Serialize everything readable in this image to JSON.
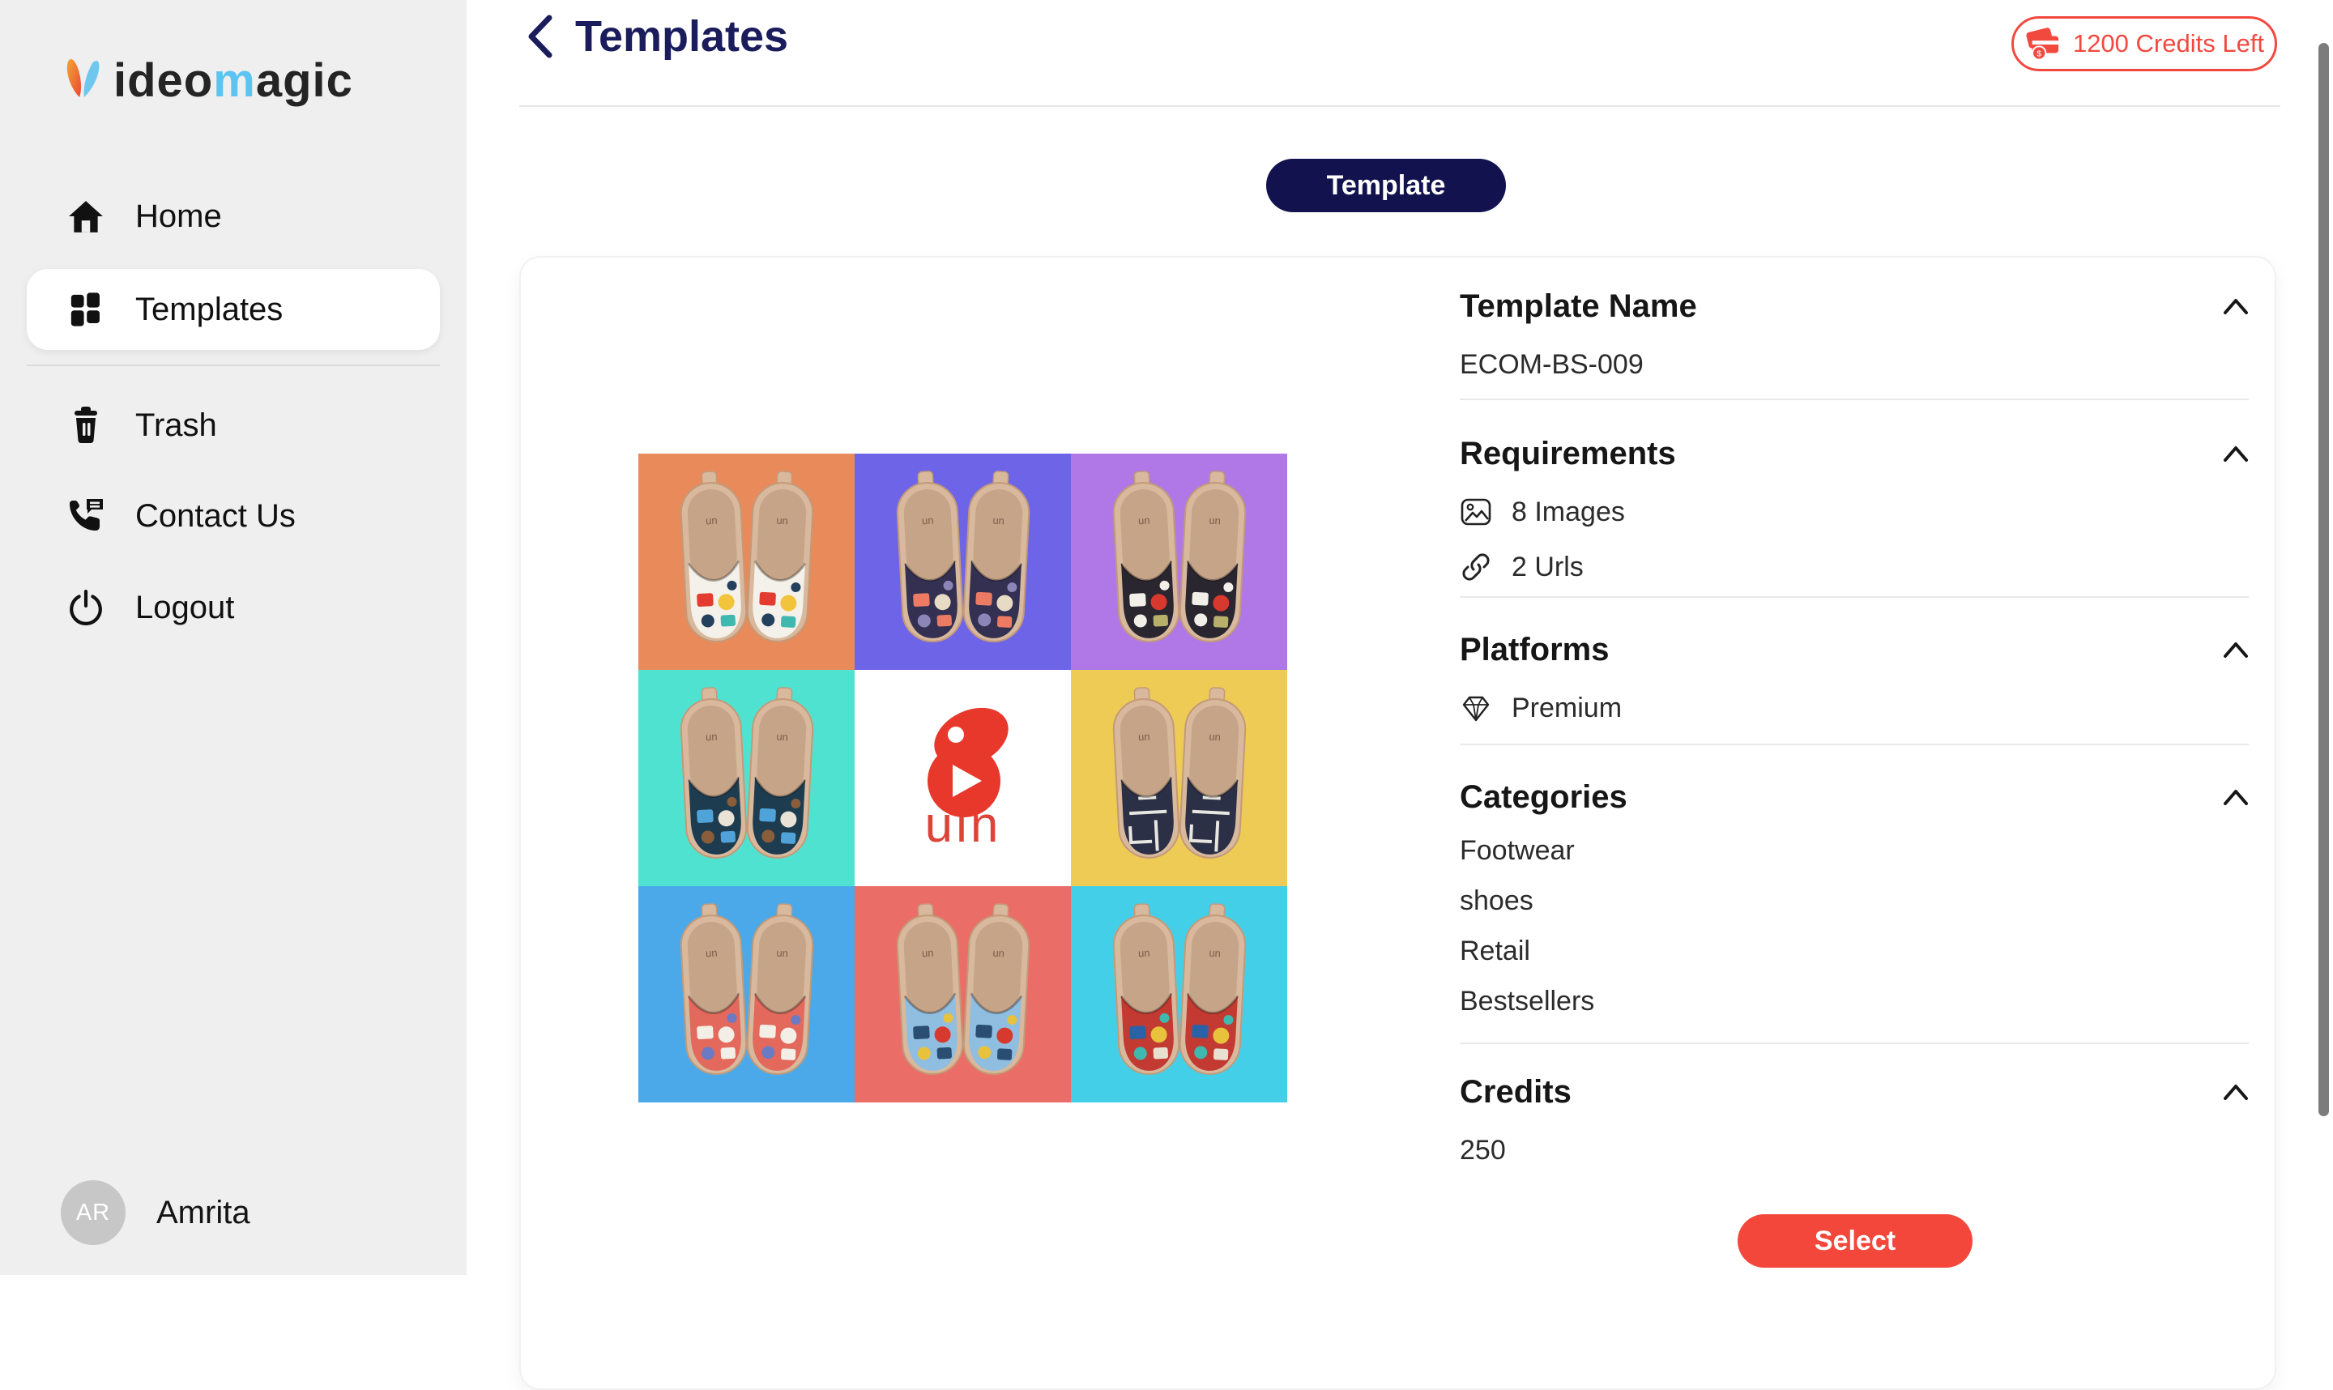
{
  "colors": {
    "accent_red": "#F2493F",
    "select_red": "#F4473C",
    "play_red": "#E8382C",
    "uin_red": "#DD4438",
    "navy_button": "#12124E",
    "title_navy": "#1A1C5C",
    "sidebar_bg": "#EFEFEF",
    "sole_tan": "#D8B99D",
    "sole_edge": "#C39A78",
    "insole_tan": "#C6A488"
  },
  "logo": {
    "icon": "v-mark",
    "part1": "ideo",
    "part2": "m",
    "part3": "agic"
  },
  "sidebar": {
    "items": [
      {
        "label": "Home",
        "icon": "home-icon",
        "selected": false
      },
      {
        "label": "Templates",
        "icon": "templates-grid-icon",
        "selected": true
      },
      {
        "label": "Trash",
        "icon": "trash-icon",
        "selected": false
      },
      {
        "label": "Contact Us",
        "icon": "contact-phone-icon",
        "selected": false
      },
      {
        "label": "Logout",
        "icon": "logout-power-icon",
        "selected": false
      }
    ],
    "user": {
      "initials": "AR",
      "name": "Amrita"
    }
  },
  "header": {
    "back": "back-chevron",
    "title": "Templates",
    "credits_badge": "1200 Credits Left"
  },
  "tab": {
    "label": "Template"
  },
  "details": {
    "template_name": {
      "heading": "Template Name",
      "value": "ECOM-BS-009"
    },
    "requirements": {
      "heading": "Requirements",
      "items": [
        {
          "icon": "images-icon",
          "label": "8 Images"
        },
        {
          "icon": "link-icon",
          "label": "2 Urls"
        }
      ]
    },
    "platforms": {
      "heading": "Platforms",
      "items": [
        {
          "icon": "gem-icon",
          "label": "Premium"
        }
      ]
    },
    "categories": {
      "heading": "Categories",
      "items": [
        "Footwear",
        "shoes",
        "Retail",
        "Bestsellers"
      ]
    },
    "credits": {
      "heading": "Credits",
      "value": "250"
    },
    "select_label": "Select"
  },
  "preview": {
    "video_text": "uin",
    "cells": [
      {
        "name": "shoes-colorblock",
        "type": "shoes",
        "bg": "#E98A5B",
        "upper": "#F4F1EA",
        "motifs": [
          "#E33B2F",
          "#F2C43C",
          "#23405C",
          "#3FB9B0"
        ]
      },
      {
        "name": "shoes-dragon-art",
        "type": "shoes",
        "bg": "#6E64E8",
        "upper": "#343052",
        "motifs": [
          "#ED7A63",
          "#E8DBC6",
          "#8C86B8",
          "#ED7A63"
        ]
      },
      {
        "name": "shoes-black-floral",
        "type": "shoes",
        "bg": "#AF78E6",
        "upper": "#2A2630",
        "motifs": [
          "#F2EFE8",
          "#D8392F",
          "#F2EFE8",
          "#B8B06A"
        ]
      },
      {
        "name": "shoes-ocean-swirl",
        "type": "shoes",
        "bg": "#4FE2D1",
        "upper": "#1E3C50",
        "motifs": [
          "#4FA3D8",
          "#E8E3D6",
          "#8A5E3A",
          "#4FA3D8"
        ]
      },
      {
        "name": "video-cover",
        "type": "video",
        "bg": "#FFFFFF"
      },
      {
        "name": "shoes-maze",
        "type": "shoes",
        "bg": "#EECB55",
        "upper": "#2C3046",
        "motifs": [
          "#E8E6E0",
          "#E8E6E0",
          "#E8E6E0",
          "#E8E6E0"
        ],
        "maze": true
      },
      {
        "name": "shoes-blossom",
        "type": "shoes",
        "bg": "#4BA9E9",
        "upper": "#E2695C",
        "motifs": [
          "#F4EFE6",
          "#F4EFE6",
          "#6A7BC4",
          "#F4EFE6"
        ]
      },
      {
        "name": "shoes-folk-art",
        "type": "shoes",
        "bg": "#EA6D68",
        "upper": "#8FBEE0",
        "motifs": [
          "#2A4E72",
          "#D8392F",
          "#E8C23C",
          "#2A4E72"
        ]
      },
      {
        "name": "shoes-mandala",
        "type": "shoes",
        "bg": "#44CFE9",
        "upper": "#C23A32",
        "motifs": [
          "#2A62A8",
          "#E8C23C",
          "#3FB9B0",
          "#E8E0D0"
        ]
      }
    ]
  }
}
